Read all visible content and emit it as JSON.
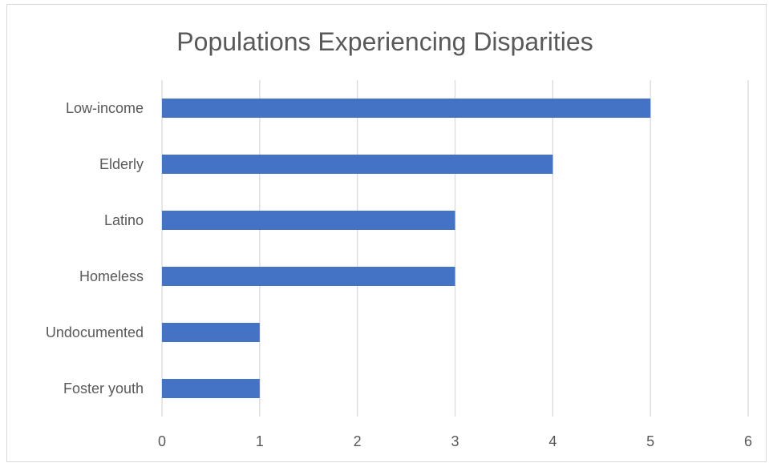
{
  "chart_data": {
    "type": "bar",
    "orientation": "horizontal",
    "title": "Populations Experiencing Disparities",
    "categories": [
      "Low-income",
      "Elderly",
      "Latino",
      "Homeless",
      "Undocumented",
      "Foster youth"
    ],
    "values": [
      5,
      4,
      3,
      3,
      1,
      1
    ],
    "xlabel": "",
    "ylabel": "",
    "xlim": [
      0,
      6
    ],
    "x_ticks": [
      "0",
      "1",
      "2",
      "3",
      "4",
      "5",
      "6"
    ],
    "grid": "vertical",
    "legend": "none",
    "bar_color": "#4472C4"
  }
}
